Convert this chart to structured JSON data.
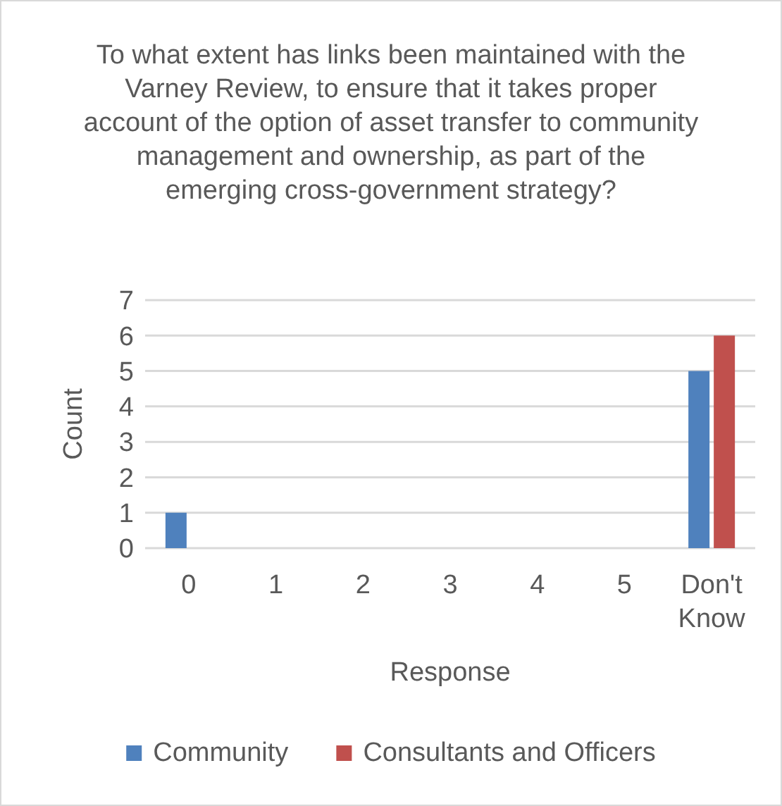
{
  "chart_data": {
    "type": "bar",
    "title": "To what extent has links been maintained with the Varney Review, to ensure that it takes proper account of the option of asset transfer to community management and ownership, as part of the emerging cross-government strategy?",
    "xlabel": "Response",
    "ylabel": "Count",
    "categories": [
      "0",
      "1",
      "2",
      "3",
      "4",
      "5",
      "Don't Know"
    ],
    "series": [
      {
        "name": "Community",
        "color": "#4f81bd",
        "values": [
          1,
          0,
          0,
          0,
          0,
          0,
          5
        ]
      },
      {
        "name": "Consultants and Officers",
        "color": "#c0504d",
        "values": [
          0,
          0,
          0,
          0,
          0,
          0,
          6
        ]
      }
    ],
    "ylim": [
      0,
      7
    ],
    "yticks": [
      0,
      1,
      2,
      3,
      4,
      5,
      6,
      7
    ],
    "grid": "y",
    "legend": "bottom"
  }
}
